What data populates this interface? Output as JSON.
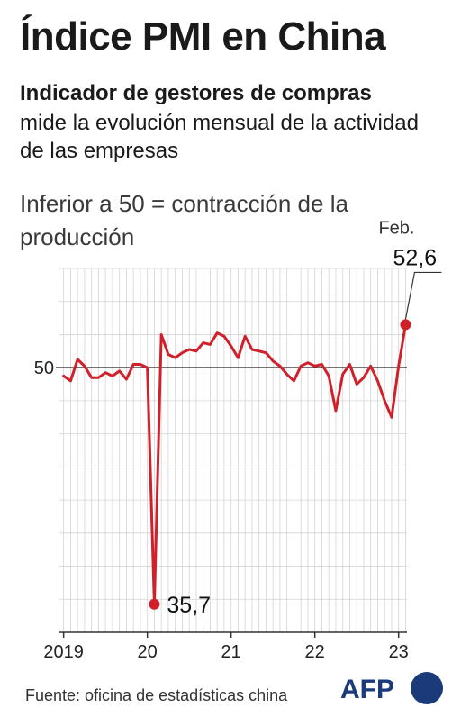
{
  "header": {
    "title": "Índice PMI en China",
    "subtitle_bold": "Indicador de gestores de compras",
    "subtitle_rest": "mide la evolución mensual de la actividad de las empresas",
    "note": "Inferior a 50 = contracción de la producción"
  },
  "footer": {
    "source": "Fuente: oficina de estadísticas china",
    "logo_text": "AFP"
  },
  "colors": {
    "line": "#d0212b",
    "grid": "#d4d4d4",
    "reference": "#222222",
    "axis": "#333333"
  },
  "chart_data": {
    "type": "line",
    "ylim": [
      34,
      56
    ],
    "reference_line": 50,
    "reference_label": "50",
    "grid": true,
    "x_tick_labels": [
      "2019",
      "20",
      "21",
      "22",
      "23"
    ],
    "x_tick_months": [
      0,
      12,
      24,
      36,
      48
    ],
    "x_range_months": [
      -0.6,
      49.2
    ],
    "series": [
      {
        "values": [
          49.5,
          49.2,
          50.5,
          50.1,
          49.4,
          49.4,
          49.7,
          49.5,
          49.8,
          49.3,
          50.2,
          50.2,
          50.0,
          35.7,
          52.0,
          50.8,
          50.6,
          50.9,
          51.1,
          51.0,
          51.5,
          51.4,
          52.1,
          51.9,
          51.3,
          50.6,
          51.9,
          51.1,
          51.0,
          50.9,
          50.4,
          50.1,
          49.6,
          49.2,
          50.1,
          50.3,
          50.1,
          50.2,
          49.5,
          47.4,
          49.6,
          50.2,
          49.0,
          49.4,
          50.1,
          49.2,
          48.0,
          47.0,
          50.1,
          52.6
        ]
      }
    ],
    "annotations": [
      {
        "label": "35,7",
        "month": 13,
        "value": 35.7
      },
      {
        "label_top": "Feb.",
        "label": "52,6",
        "month": 49,
        "value": 52.6
      }
    ]
  }
}
